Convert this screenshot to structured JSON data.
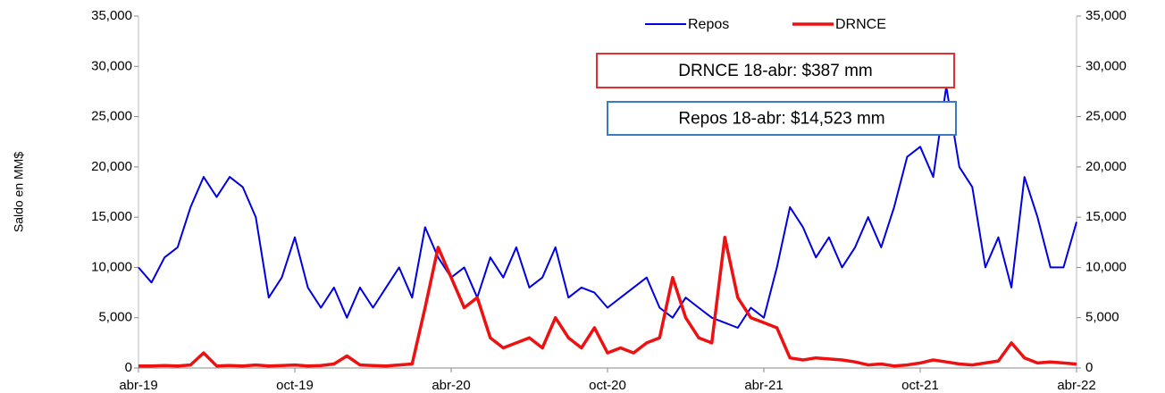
{
  "chart_data": {
    "type": "line",
    "y_label": "Saldo en MM$",
    "categories": [
      "abr-19",
      null,
      null,
      null,
      null,
      null,
      null,
      null,
      null,
      null,
      null,
      null,
      "oct-19",
      null,
      null,
      null,
      null,
      null,
      null,
      null,
      null,
      null,
      null,
      null,
      "abr-20",
      null,
      null,
      null,
      null,
      null,
      null,
      null,
      null,
      null,
      null,
      null,
      "oct-20",
      null,
      null,
      null,
      null,
      null,
      null,
      null,
      null,
      null,
      null,
      null,
      "abr-21",
      null,
      null,
      null,
      null,
      null,
      null,
      null,
      null,
      null,
      null,
      null,
      "oct-21",
      null,
      null,
      null,
      null,
      null,
      null,
      null,
      null,
      null,
      null,
      null,
      "abr-22"
    ],
    "series": [
      {
        "name": "Repos",
        "color": "#0000e0",
        "width": 2,
        "values": [
          10000,
          8500,
          11000,
          12000,
          16000,
          19000,
          17000,
          19000,
          18000,
          15000,
          7000,
          9000,
          13000,
          8000,
          6000,
          8000,
          5000,
          8000,
          6000,
          8000,
          10000,
          7000,
          14000,
          11000,
          9000,
          10000,
          7000,
          11000,
          9000,
          12000,
          8000,
          9000,
          12000,
          7000,
          8000,
          7500,
          6000,
          7000,
          8000,
          9000,
          6000,
          5000,
          7000,
          6000,
          5000,
          4500,
          4000,
          6000,
          5000,
          10000,
          16000,
          14000,
          11000,
          13000,
          10000,
          12000,
          15000,
          12000,
          16000,
          21000,
          22000,
          19000,
          28000,
          20000,
          18000,
          10000,
          13000,
          8000,
          19000,
          15000,
          10000,
          10000,
          14523
        ]
      },
      {
        "name": "DRNCE",
        "color": "#ee1111",
        "width": 3.5,
        "values": [
          200,
          200,
          250,
          200,
          300,
          1500,
          200,
          250,
          200,
          300,
          200,
          250,
          300,
          200,
          250,
          400,
          1200,
          300,
          250,
          200,
          300,
          400,
          6000,
          12000,
          9000,
          6000,
          7000,
          3000,
          2000,
          2500,
          3000,
          2000,
          5000,
          3000,
          2000,
          4000,
          1500,
          2000,
          1500,
          2500,
          3000,
          9000,
          5000,
          3000,
          2500,
          13000,
          7000,
          5000,
          4500,
          4000,
          1000,
          800,
          1000,
          900,
          800,
          600,
          300,
          400,
          200,
          300,
          500,
          800,
          600,
          400,
          300,
          500,
          700,
          2500,
          1000,
          500,
          600,
          500,
          387
        ]
      }
    ],
    "ylim": [
      0,
      35000
    ],
    "yticks": [
      0,
      {
        "value": 5000,
        "label": "5,000"
      },
      {
        "value": 10000,
        "label": "10,000"
      },
      {
        "value": 15000,
        "label": "15,000"
      },
      {
        "value": 20000,
        "label": "20,000"
      },
      {
        "value": 25000,
        "label": "25,000"
      },
      {
        "value": 30000,
        "label": "30,000"
      },
      {
        "value": 35000,
        "label": "35,000"
      }
    ],
    "y2lim": [
      0,
      35000
    ],
    "y2ticks": [
      0,
      {
        "value": 5000,
        "label": "5,000"
      },
      {
        "value": 10000,
        "label": "10,000"
      },
      {
        "value": 15000,
        "label": "15,000"
      },
      {
        "value": 20000,
        "label": "20,000"
      },
      {
        "value": 25000,
        "label": "25,000"
      },
      {
        "value": 30000,
        "label": "30,000"
      },
      {
        "value": 35000,
        "label": "35,000"
      }
    ],
    "annotations": [
      {
        "text": "DRNCE 18-abr: $387 mm",
        "color": "#e03030"
      },
      {
        "text": "Repos 18-abr: $14,523 mm",
        "color": "#3a7ac0"
      }
    ],
    "legend": "top"
  }
}
